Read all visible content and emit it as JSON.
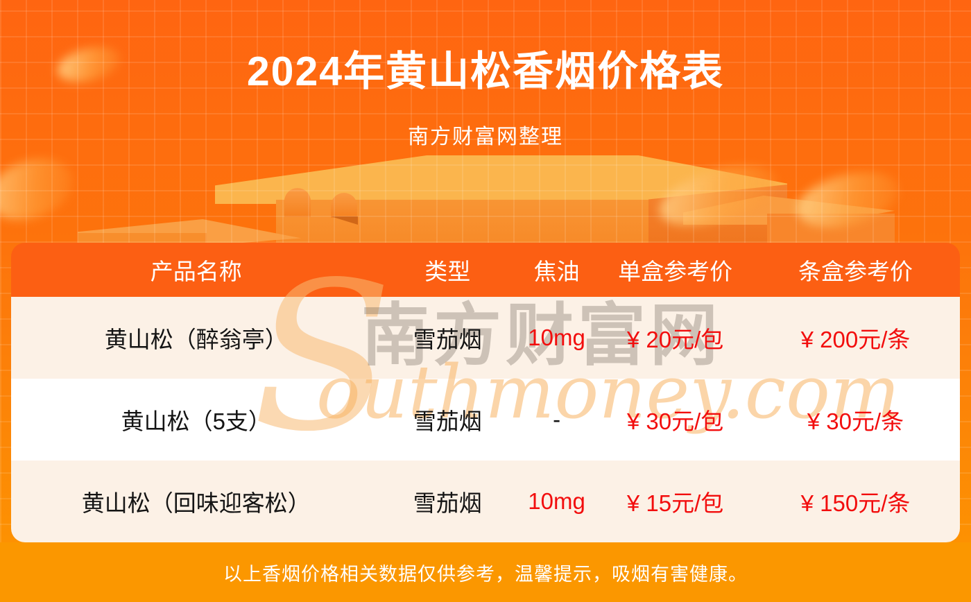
{
  "theme": {
    "background_top_color": "#ff6511",
    "background_bottom_color": "#fd9700",
    "header_band_color": "#fc5f13",
    "footer_band_color": "#fb9700",
    "row_cream_color": "#fcf1e6",
    "row_white_color": "#ffffff",
    "price_red_color": "#f20d0d",
    "title_color": "#ffffff"
  },
  "header": {
    "title": "2024年黄山松香烟价格表",
    "subtitle": "南方财富网整理"
  },
  "chart_data": {
    "type": "table",
    "title": "2024年黄山松香烟价格表",
    "columns": [
      "产品名称",
      "类型",
      "焦油",
      "单盒参考价",
      "条盒参考价"
    ],
    "rows": [
      {
        "name": "黄山松（醉翁亭）",
        "type": "雪茄烟",
        "tar": "10mg",
        "pack_price": "¥ 20元/包",
        "carton_price": "¥ 200元/条"
      },
      {
        "name": "黄山松（5支）",
        "type": "雪茄烟",
        "tar": "-",
        "pack_price": "¥ 30元/包",
        "carton_price": "¥ 30元/条"
      },
      {
        "name": "黄山松（回味迎客松）",
        "type": "雪茄烟",
        "tar": "10mg",
        "pack_price": "¥ 15元/包",
        "carton_price": "¥ 150元/条"
      }
    ]
  },
  "watermark": {
    "initial": "S",
    "cn": "南方财富网",
    "en": "outhmoney.com"
  },
  "footer": {
    "disclaimer": "以上香烟价格相关数据仅供参考，温馨提示，吸烟有害健康。"
  }
}
